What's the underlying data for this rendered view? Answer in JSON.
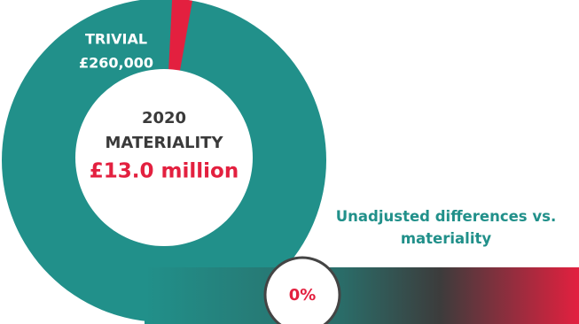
{
  "chart_data": {
    "type": "donut",
    "materiality": {
      "year": "2020",
      "label": "MATERIALITY",
      "value": 13000000,
      "value_label": "£13.0 million",
      "color": "#21908a"
    },
    "trivial": {
      "label": "TRIVIAL",
      "value": 260000,
      "value_label": "£260,000",
      "color": "#e3203f"
    },
    "gauge": {
      "title": "Unadjusted differences vs. materiality",
      "value": 0,
      "value_label": "0%"
    }
  }
}
